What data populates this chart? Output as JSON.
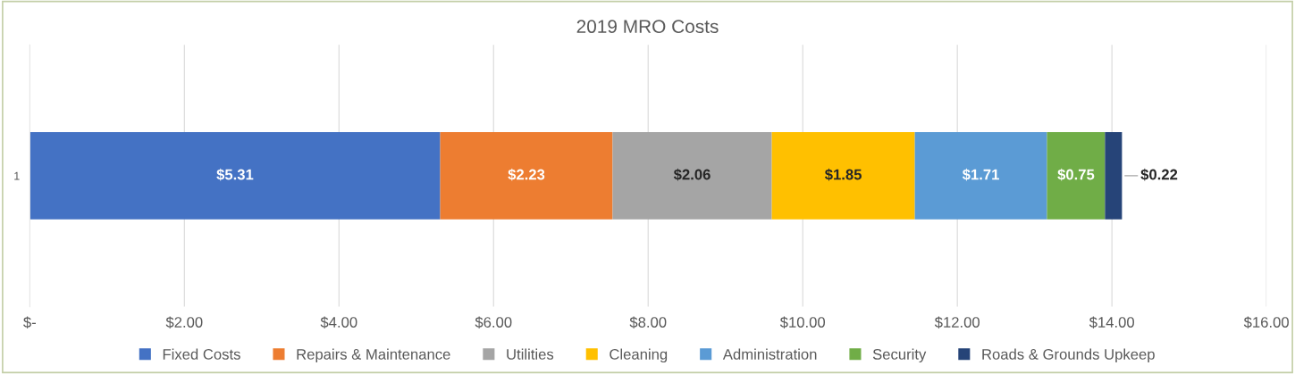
{
  "chart_data": {
    "type": "bar",
    "orientation": "horizontal",
    "stacked": true,
    "title": "2019 MRO Costs",
    "categories": [
      "1"
    ],
    "series": [
      {
        "name": "Fixed Costs",
        "color": "#4472c4",
        "values": [
          5.31
        ],
        "value_labels": [
          "$5.31"
        ]
      },
      {
        "name": "Repairs & Maintenance",
        "color": "#ed7d31",
        "values": [
          2.23
        ],
        "value_labels": [
          "$2.23"
        ]
      },
      {
        "name": "Utilities",
        "color": "#a5a5a5",
        "values": [
          2.06
        ],
        "value_labels": [
          "$2.06"
        ]
      },
      {
        "name": "Cleaning",
        "color": "#ffc000",
        "values": [
          1.85
        ],
        "value_labels": [
          "$1.85"
        ]
      },
      {
        "name": "Administration",
        "color": "#5b9bd5",
        "values": [
          1.71
        ],
        "value_labels": [
          "$1.71"
        ]
      },
      {
        "name": "Security",
        "color": "#70ad47",
        "values": [
          0.75
        ],
        "value_labels": [
          "$0.75"
        ]
      },
      {
        "name": "Roads & Grounds Upkeep",
        "color": "#264478",
        "values": [
          0.22
        ],
        "value_labels": [
          "$0.22"
        ]
      }
    ],
    "xlim": [
      0,
      16
    ],
    "xticks": [
      {
        "value": 0,
        "label": "$-"
      },
      {
        "value": 2,
        "label": "$2.00"
      },
      {
        "value": 4,
        "label": "$4.00"
      },
      {
        "value": 6,
        "label": "$6.00"
      },
      {
        "value": 8,
        "label": "$8.00"
      },
      {
        "value": 10,
        "label": "$10.00"
      },
      {
        "value": 12,
        "label": "$12.00"
      },
      {
        "value": 14,
        "label": "$14.00"
      },
      {
        "value": 16,
        "label": "$16.00"
      }
    ],
    "grid": "x",
    "legend": "bottom"
  }
}
